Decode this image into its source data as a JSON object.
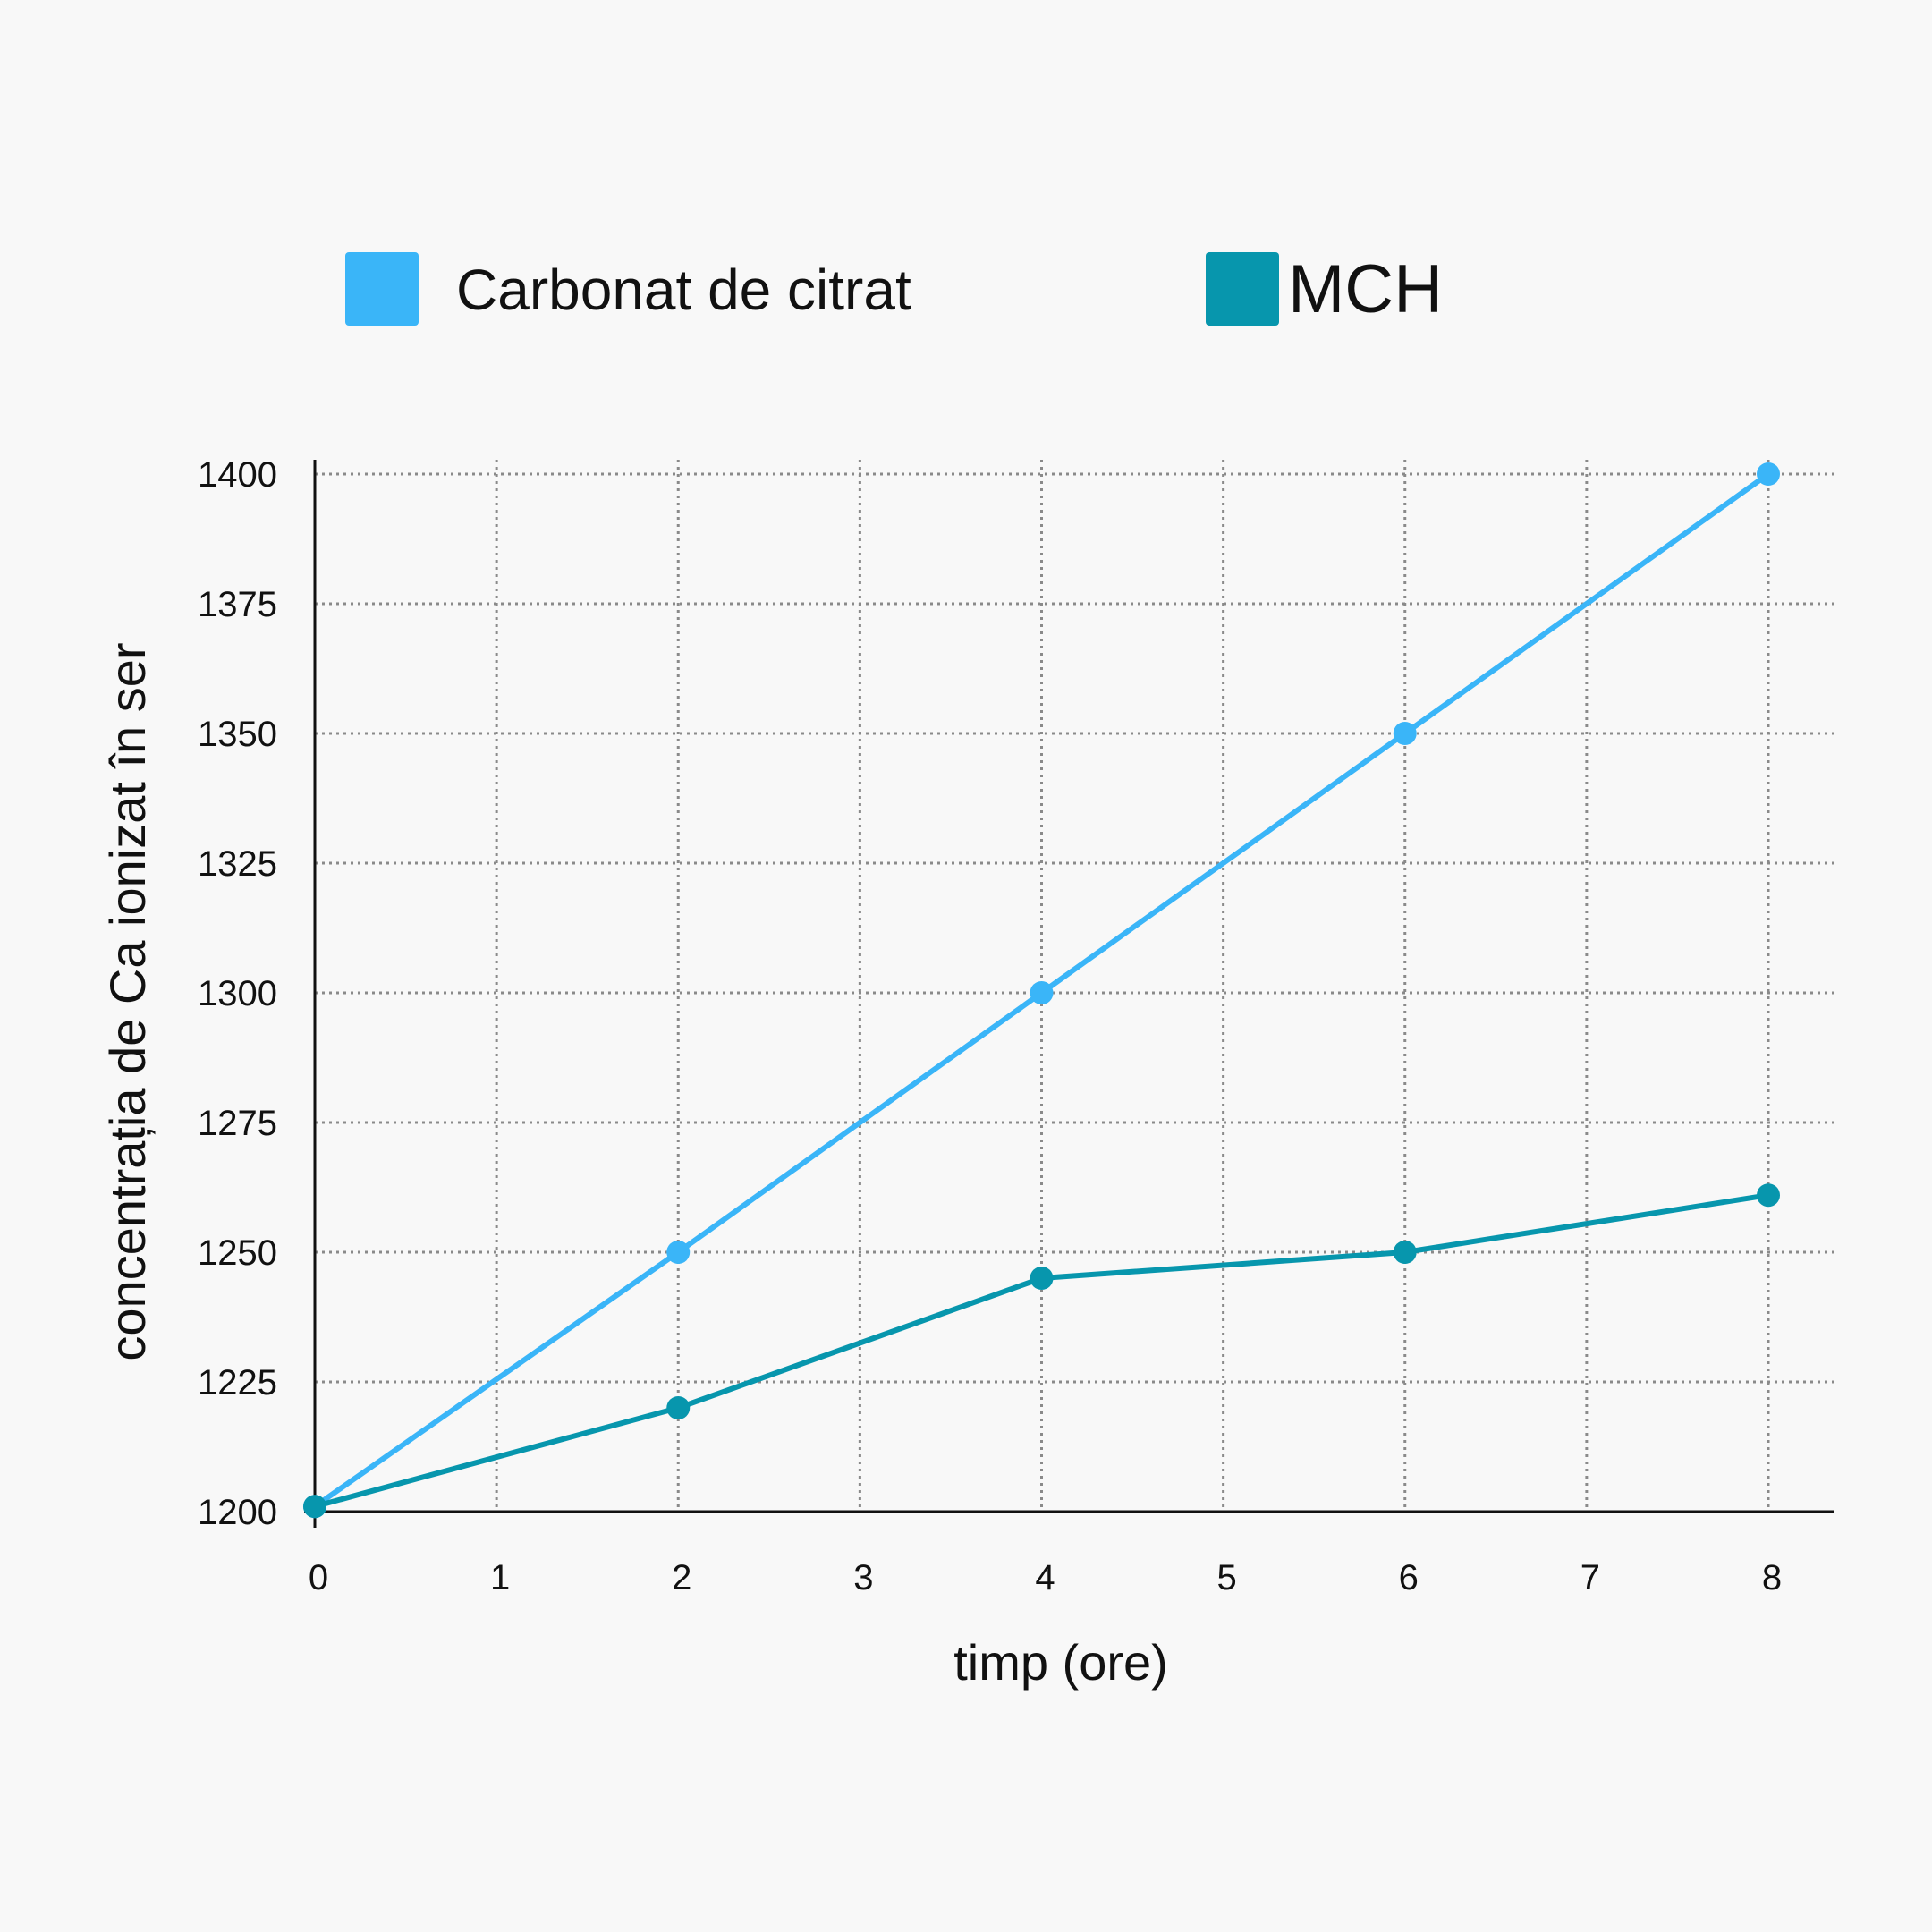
{
  "chart_data": {
    "type": "line",
    "title": "",
    "xlabel": "timp (ore)",
    "ylabel": "concentrația de Ca ionizat în ser",
    "x_ticks": [
      0,
      1,
      2,
      3,
      4,
      5,
      6,
      7,
      8
    ],
    "y_ticks": [
      1200,
      1225,
      1250,
      1275,
      1300,
      1325,
      1350,
      1375,
      1400
    ],
    "xlim": [
      0,
      8
    ],
    "ylim": [
      1200,
      1400
    ],
    "grid": true,
    "grid_style": "dotted",
    "legend_position": "top",
    "series": [
      {
        "name": "Carbonat de citrat",
        "color": "#3ab5f8",
        "x": [
          0,
          2,
          4,
          6,
          8
        ],
        "values": [
          1201,
          1250,
          1300,
          1350,
          1400
        ]
      },
      {
        "name": "MCH",
        "color": "#0796ad",
        "x": [
          0,
          2,
          4,
          6,
          8
        ],
        "values": [
          1201,
          1220,
          1245,
          1250,
          1261
        ]
      }
    ]
  }
}
